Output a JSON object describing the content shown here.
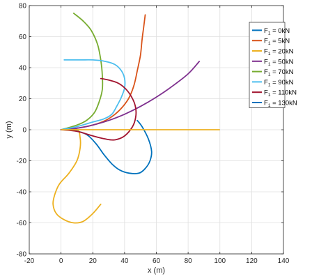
{
  "chart_data": {
    "type": "line",
    "xlabel": "x (m)",
    "ylabel": "y (m)",
    "xlim": [
      -20,
      140
    ],
    "ylim": [
      -80,
      80
    ],
    "xticks": [
      -20,
      0,
      20,
      40,
      60,
      80,
      100,
      120,
      140
    ],
    "yticks": [
      -80,
      -60,
      -40,
      -20,
      0,
      20,
      40,
      60,
      80
    ],
    "grid": true,
    "legend_position": "top-right",
    "series": [
      {
        "name": "F1 = 0kN",
        "legend": {
          "main": "F",
          "sub": "1",
          "rest": " = 0kN"
        },
        "color": "#0072BD",
        "points": [
          [
            0,
            0
          ],
          [
            8,
            -0.5
          ],
          [
            16,
            -3
          ],
          [
            22,
            -9
          ],
          [
            27,
            -16
          ],
          [
            32,
            -22
          ],
          [
            37,
            -26
          ],
          [
            43,
            -28
          ],
          [
            49,
            -28
          ],
          [
            53,
            -25
          ],
          [
            56,
            -20
          ],
          [
            57,
            -14
          ],
          [
            55,
            -6
          ],
          [
            51,
            2
          ],
          [
            48,
            6
          ]
        ]
      },
      {
        "name": "F1 = 5kN",
        "legend": {
          "main": "F",
          "sub": "1",
          "rest": " = 5kN"
        },
        "color": "#D95319",
        "points": [
          [
            0,
            0
          ],
          [
            10,
            1
          ],
          [
            20,
            3
          ],
          [
            28,
            6
          ],
          [
            34,
            10
          ],
          [
            39,
            15
          ],
          [
            43,
            21
          ],
          [
            46,
            29
          ],
          [
            48,
            38
          ],
          [
            50,
            48
          ],
          [
            51,
            58
          ],
          [
            52,
            66
          ],
          [
            53,
            74
          ]
        ]
      },
      {
        "name": "F1 = 20kN",
        "legend": {
          "main": "F",
          "sub": "1",
          "rest": " = 20kN"
        },
        "color": "#EDB120",
        "points": [
          [
            0,
            0
          ],
          [
            10,
            0
          ],
          [
            12,
            -5
          ],
          [
            12,
            -12
          ],
          [
            10,
            -20
          ],
          [
            5,
            -28
          ],
          [
            -1,
            -35
          ],
          [
            -4,
            -42
          ],
          [
            -5,
            -48
          ],
          [
            -3,
            -54
          ],
          [
            2,
            -58
          ],
          [
            8,
            -60
          ],
          [
            14,
            -59
          ],
          [
            20,
            -54
          ],
          [
            25,
            -48
          ]
        ]
      },
      {
        "name": "F1 = 50kN",
        "legend": {
          "main": "F",
          "sub": "1",
          "rest": " = 50kN"
        },
        "color": "#7E2F8E",
        "points": [
          [
            0,
            0
          ],
          [
            10,
            1
          ],
          [
            20,
            3
          ],
          [
            30,
            6
          ],
          [
            40,
            10
          ],
          [
            50,
            15
          ],
          [
            60,
            21
          ],
          [
            70,
            28
          ],
          [
            80,
            36
          ],
          [
            87,
            44
          ]
        ]
      },
      {
        "name": "F1 = 70kN",
        "legend": {
          "main": "F",
          "sub": "1",
          "rest": " = 70kN"
        },
        "color": "#77AC30",
        "points": [
          [
            0,
            0
          ],
          [
            10,
            3
          ],
          [
            16,
            6
          ],
          [
            21,
            11
          ],
          [
            24,
            18
          ],
          [
            26,
            26
          ],
          [
            26,
            35
          ],
          [
            25,
            45
          ],
          [
            23,
            55
          ],
          [
            19,
            64
          ],
          [
            14,
            70
          ],
          [
            8,
            75
          ]
        ]
      },
      {
        "name": "F1 = 90kN",
        "legend": {
          "main": "F",
          "sub": "1",
          "rest": " = 90kN"
        },
        "color": "#4DBEEE",
        "points": [
          [
            0,
            0
          ],
          [
            10,
            2
          ],
          [
            20,
            5
          ],
          [
            27,
            7
          ],
          [
            32,
            10
          ],
          [
            35,
            15
          ],
          [
            38,
            21
          ],
          [
            40,
            27
          ],
          [
            40,
            33
          ],
          [
            38,
            38
          ],
          [
            34,
            42
          ],
          [
            28,
            44
          ],
          [
            20,
            45
          ],
          [
            12,
            45
          ],
          [
            2,
            45
          ]
        ]
      },
      {
        "name": "F1 = 110kN",
        "legend": {
          "main": "F",
          "sub": "1",
          "rest": " = 110kN"
        },
        "color": "#A2142F",
        "points": [
          [
            0,
            0
          ],
          [
            10,
            -1
          ],
          [
            20,
            -4
          ],
          [
            28,
            -6
          ],
          [
            34,
            -6.5
          ],
          [
            40,
            -4
          ],
          [
            45,
            2
          ],
          [
            47,
            8
          ],
          [
            47,
            14
          ],
          [
            45,
            20
          ],
          [
            41,
            26
          ],
          [
            36,
            30
          ],
          [
            30,
            32
          ],
          [
            25,
            33
          ]
        ]
      },
      {
        "name": "F1 = 130kN",
        "legend": {
          "main": "F",
          "sub": "1",
          "rest": " = 130kN"
        },
        "color": "#0072BD",
        "points": []
      }
    ]
  }
}
